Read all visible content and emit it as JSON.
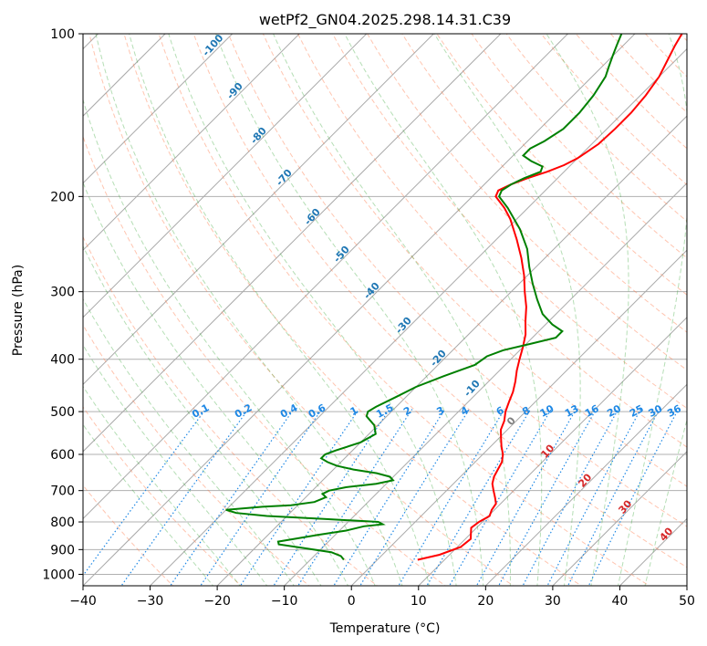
{
  "chart_data": {
    "type": "skew-t",
    "title": "wetPf2_GN04.2025.298.14.31.C39",
    "xlabel": "Temperature (°C)",
    "ylabel": "Pressure (hPa)",
    "xlim": [
      -40,
      50
    ],
    "ylim": [
      1050,
      100
    ],
    "x_ticks": [
      "−40",
      "−30",
      "−20",
      "−10",
      "0",
      "10",
      "20",
      "30",
      "40",
      "50"
    ],
    "y_ticks": [
      "100",
      "200",
      "300",
      "400",
      "500",
      "600",
      "700",
      "800",
      "900",
      "1000"
    ],
    "grid": true,
    "series": [
      {
        "name": "temperature",
        "color": "#ff0000",
        "points": [
          [
            940,
            6
          ],
          [
            920,
            8.5
          ],
          [
            890,
            10.5
          ],
          [
            860,
            10.8
          ],
          [
            840,
            10
          ],
          [
            820,
            9.2
          ],
          [
            800,
            9.5
          ],
          [
            780,
            10.2
          ],
          [
            760,
            9.6
          ],
          [
            740,
            9.3
          ],
          [
            720,
            8.2
          ],
          [
            700,
            7
          ],
          [
            680,
            5.8
          ],
          [
            660,
            5
          ],
          [
            640,
            4.5
          ],
          [
            620,
            4
          ],
          [
            600,
            3
          ],
          [
            580,
            1.6
          ],
          [
            560,
            0.3
          ],
          [
            540,
            -1
          ],
          [
            520,
            -1.8
          ],
          [
            500,
            -3
          ],
          [
            480,
            -3.9
          ],
          [
            460,
            -4.8
          ],
          [
            440,
            -6
          ],
          [
            420,
            -7.4
          ],
          [
            400,
            -8.7
          ],
          [
            380,
            -10
          ],
          [
            360,
            -11.5
          ],
          [
            340,
            -13.5
          ],
          [
            320,
            -15.5
          ],
          [
            300,
            -18
          ],
          [
            280,
            -20.5
          ],
          [
            260,
            -23.5
          ],
          [
            240,
            -27
          ],
          [
            220,
            -31
          ],
          [
            210,
            -33.5
          ],
          [
            200,
            -36.5
          ],
          [
            195,
            -37
          ],
          [
            190,
            -36
          ],
          [
            185,
            -34.5
          ],
          [
            180,
            -32.5
          ],
          [
            175,
            -31
          ],
          [
            170,
            -30
          ],
          [
            165,
            -29.5
          ],
          [
            160,
            -29
          ],
          [
            150,
            -28.8
          ],
          [
            140,
            -28.8
          ],
          [
            130,
            -29.2
          ],
          [
            120,
            -30
          ],
          [
            110,
            -31.5
          ],
          [
            105,
            -32.3
          ],
          [
            100,
            -33
          ]
        ]
      },
      {
        "name": "dewpoint",
        "color": "#008000",
        "points": [
          [
            940,
            -5
          ],
          [
            925,
            -6
          ],
          [
            910,
            -8
          ],
          [
            895,
            -12.5
          ],
          [
            880,
            -17
          ],
          [
            870,
            -17.5
          ],
          [
            860,
            -15.5
          ],
          [
            845,
            -12.5
          ],
          [
            830,
            -9
          ],
          [
            815,
            -7
          ],
          [
            808,
            -4.5
          ],
          [
            800,
            -5.5
          ],
          [
            790,
            -14
          ],
          [
            780,
            -23
          ],
          [
            770,
            -28
          ],
          [
            760,
            -30
          ],
          [
            750,
            -25
          ],
          [
            745,
            -21
          ],
          [
            735,
            -18
          ],
          [
            720,
            -17
          ],
          [
            710,
            -18
          ],
          [
            700,
            -17.5
          ],
          [
            690,
            -15.5
          ],
          [
            680,
            -11.5
          ],
          [
            670,
            -9.5
          ],
          [
            660,
            -10.5
          ],
          [
            650,
            -13
          ],
          [
            640,
            -17
          ],
          [
            630,
            -20
          ],
          [
            620,
            -22
          ],
          [
            610,
            -23.5
          ],
          [
            600,
            -23.5
          ],
          [
            590,
            -22.5
          ],
          [
            570,
            -20
          ],
          [
            550,
            -19
          ],
          [
            530,
            -20.5
          ],
          [
            510,
            -23
          ],
          [
            500,
            -23.5
          ],
          [
            490,
            -23
          ],
          [
            470,
            -21.5
          ],
          [
            450,
            -20
          ],
          [
            430,
            -17.5
          ],
          [
            410,
            -14.5
          ],
          [
            395,
            -14
          ],
          [
            385,
            -12.5
          ],
          [
            375,
            -9.5
          ],
          [
            365,
            -6.5
          ],
          [
            355,
            -6.5
          ],
          [
            345,
            -9
          ],
          [
            330,
            -12
          ],
          [
            310,
            -15
          ],
          [
            290,
            -18
          ],
          [
            270,
            -21
          ],
          [
            250,
            -24
          ],
          [
            230,
            -28
          ],
          [
            210,
            -33
          ],
          [
            200,
            -36
          ],
          [
            195,
            -36.5
          ],
          [
            190,
            -36
          ],
          [
            185,
            -35
          ],
          [
            180,
            -33.5
          ],
          [
            176,
            -34
          ],
          [
            172,
            -36.5
          ],
          [
            168,
            -38.5
          ],
          [
            163,
            -38.5
          ],
          [
            158,
            -37.5
          ],
          [
            150,
            -36.5
          ],
          [
            140,
            -36.5
          ],
          [
            130,
            -37
          ],
          [
            120,
            -38
          ],
          [
            115,
            -39
          ],
          [
            110,
            -40
          ],
          [
            105,
            -41
          ],
          [
            100,
            -42
          ]
        ]
      }
    ],
    "dry_adiabat_labels": [
      "-100",
      "-90",
      "-80",
      "-70",
      "-60",
      "-50",
      "-40",
      "-30",
      "-20",
      "-10"
    ],
    "moist_adiabat_labels": [
      "0",
      "10",
      "20",
      "30",
      "40"
    ],
    "mixing_ratio_labels": [
      "0.1",
      "0.2",
      "0.4",
      "0.6",
      "1",
      "1.5",
      "2",
      "3",
      "4",
      "6",
      "8",
      "10",
      "13",
      "16",
      "20",
      "25",
      "30",
      "36"
    ],
    "colors": {
      "temperature": "#ff0000",
      "dewpoint": "#008000",
      "dry_adiabat": "#ff7f50",
      "moist_adiabat": "#2ca02c",
      "mixing_ratio": "#1e88e5",
      "isotherm": "#808080"
    }
  }
}
